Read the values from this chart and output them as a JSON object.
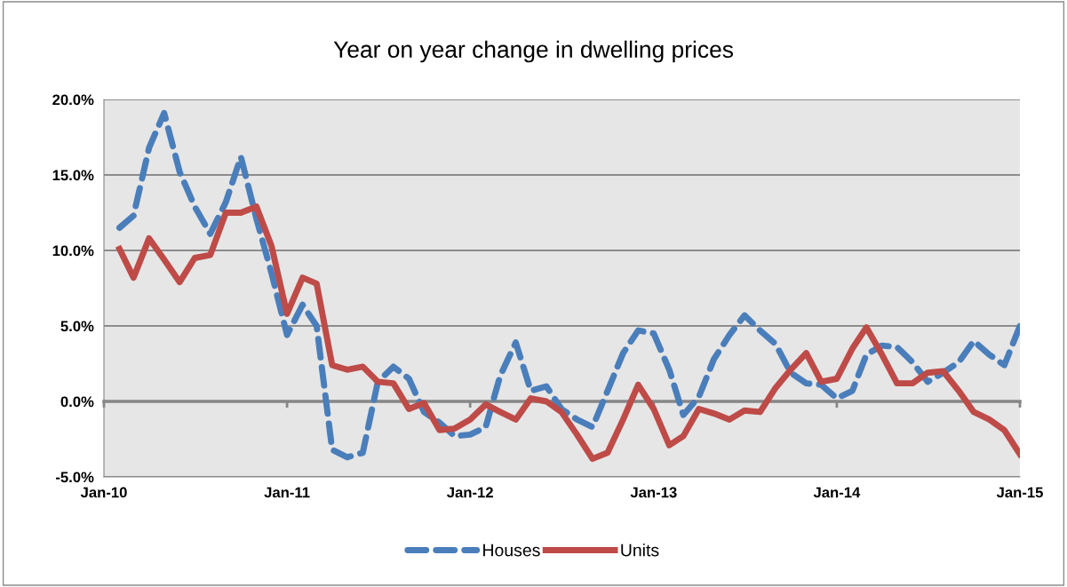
{
  "chart_data": {
    "type": "line",
    "title": "Year on year change in dwelling prices",
    "x": [
      "2010-02",
      "2010-03",
      "2010-04",
      "2010-05",
      "2010-06",
      "2010-07",
      "2010-08",
      "2010-09",
      "2010-10",
      "2010-11",
      "2010-12",
      "2011-01",
      "2011-02",
      "2011-03",
      "2011-04",
      "2011-05",
      "2011-06",
      "2011-07",
      "2011-08",
      "2011-09",
      "2011-10",
      "2011-11",
      "2011-12",
      "2012-01",
      "2012-02",
      "2012-03",
      "2012-04",
      "2012-05",
      "2012-06",
      "2012-07",
      "2012-08",
      "2012-09",
      "2012-10",
      "2012-11",
      "2012-12",
      "2013-01",
      "2013-02",
      "2013-03",
      "2013-04",
      "2013-05",
      "2013-06",
      "2013-07",
      "2013-08",
      "2013-09",
      "2013-10",
      "2013-11",
      "2013-12",
      "2014-01",
      "2014-02",
      "2014-03",
      "2014-04",
      "2014-05",
      "2014-06",
      "2014-07",
      "2014-08",
      "2014-09",
      "2014-10",
      "2014-11",
      "2014-12",
      "2015-01"
    ],
    "series": [
      {
        "name": "Houses",
        "color": "#4a7ebb",
        "line_style": "dashed",
        "values": [
          11.5,
          12.3,
          16.8,
          19.1,
          15.2,
          12.9,
          11.1,
          13.2,
          16.2,
          12.1,
          8.5,
          4.4,
          6.4,
          5.0,
          -3.2,
          -3.7,
          -3.4,
          1.3,
          2.3,
          1.5,
          -0.7,
          -1.4,
          -2.3,
          -2.2,
          -1.7,
          1.7,
          3.9,
          0.7,
          1.0,
          -0.5,
          -1.2,
          -1.7,
          0.7,
          3.2,
          4.7,
          4.5,
          2.1,
          -0.9,
          0.3,
          2.8,
          4.4,
          5.7,
          4.7,
          3.8,
          1.9,
          1.2,
          1.1,
          0.2,
          0.7,
          3.1,
          3.7,
          3.6,
          2.6,
          1.3,
          1.9,
          2.6,
          4.0,
          3.1,
          2.4,
          5.0
        ]
      },
      {
        "name": "Units",
        "color": "#be4b48",
        "line_style": "solid",
        "values": [
          10.1,
          8.2,
          10.8,
          9.4,
          7.9,
          9.5,
          9.7,
          12.5,
          12.5,
          12.9,
          10.3,
          5.8,
          8.2,
          7.8,
          2.4,
          2.1,
          2.3,
          1.3,
          1.2,
          -0.5,
          -0.1,
          -1.9,
          -1.8,
          -1.2,
          -0.2,
          -0.7,
          -1.2,
          0.2,
          0.0,
          -0.7,
          -2.2,
          -3.8,
          -3.4,
          -1.2,
          1.1,
          -0.5,
          -2.9,
          -2.3,
          -0.5,
          -0.8,
          -1.2,
          -0.6,
          -0.7,
          0.9,
          2.1,
          3.2,
          1.3,
          1.5,
          3.5,
          4.9,
          3.1,
          1.2,
          1.2,
          1.9,
          2.0,
          0.7,
          -0.7,
          -1.2,
          -1.9,
          -3.5
        ]
      }
    ],
    "xlim": [
      "2010-01",
      "2015-01"
    ],
    "xticks": [
      {
        "value": "2010-01",
        "label": "Jan-10"
      },
      {
        "value": "2011-01",
        "label": "Jan-11"
      },
      {
        "value": "2012-01",
        "label": "Jan-12"
      },
      {
        "value": "2013-01",
        "label": "Jan-13"
      },
      {
        "value": "2014-01",
        "label": "Jan-14"
      },
      {
        "value": "2015-01",
        "label": "Jan-15"
      }
    ],
    "ylim": [
      -5,
      20
    ],
    "yticks": [
      {
        "value": -5,
        "label": "-5.0%"
      },
      {
        "value": 0,
        "label": "0.0%"
      },
      {
        "value": 5,
        "label": "5.0%"
      },
      {
        "value": 10,
        "label": "10.0%"
      },
      {
        "value": 15,
        "label": "15.0%"
      },
      {
        "value": 20,
        "label": "20.0%"
      }
    ],
    "grid": "y",
    "legend": "bottom"
  }
}
